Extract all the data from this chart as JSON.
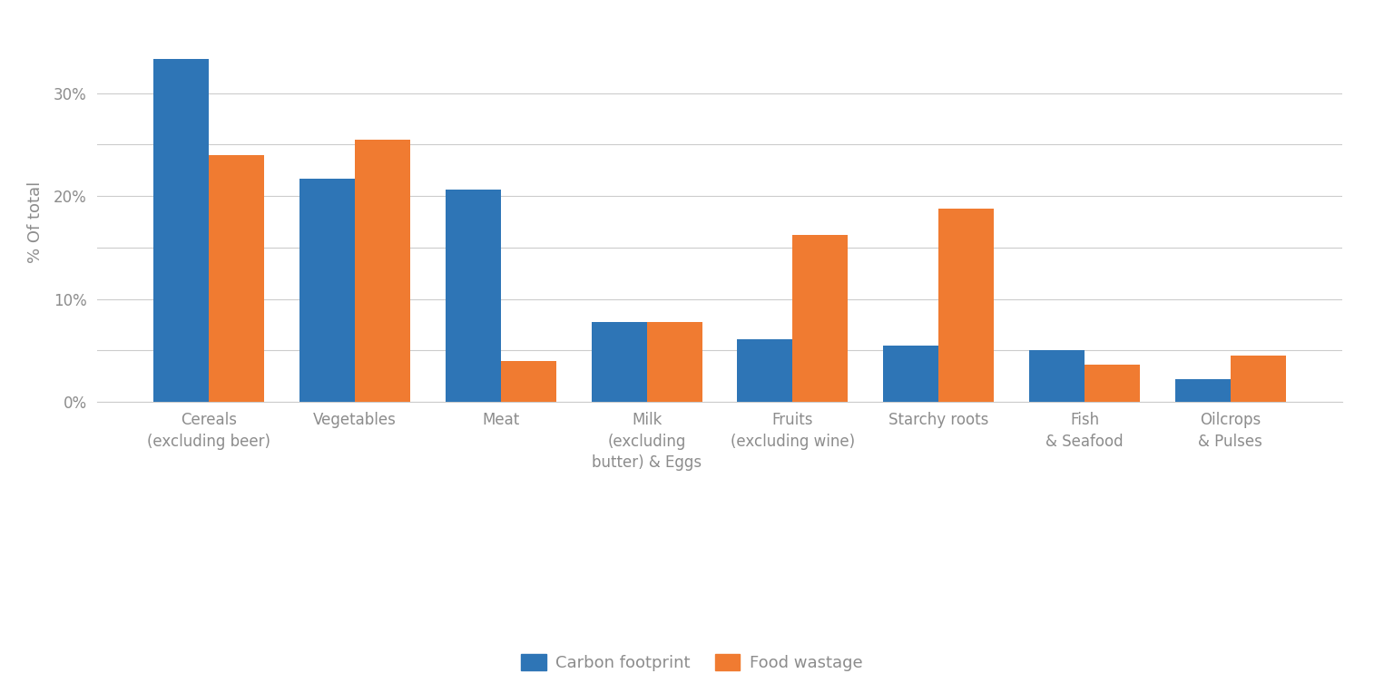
{
  "categories": [
    "Cereals\n(excluding beer)",
    "Vegetables",
    "Meat",
    "Milk\n(excluding\nbutter) & Eggs",
    "Fruits\n(excluding wine)",
    "Starchy roots",
    "Fish\n& Seafood",
    "Oilcrops\n& Pulses"
  ],
  "carbon_footprint": [
    33.3,
    21.7,
    20.6,
    7.8,
    6.1,
    5.5,
    5.0,
    2.2
  ],
  "food_wastage": [
    24.0,
    25.5,
    4.0,
    7.8,
    16.2,
    18.8,
    3.6,
    4.5
  ],
  "bar_color_blue": "#2e75b6",
  "bar_color_orange": "#f07b31",
  "ylabel": "% Of total",
  "ylim": [
    0,
    35
  ],
  "yticks": [
    0,
    10,
    20,
    30
  ],
  "ytick_labels": [
    "0%",
    "10%",
    "20%",
    "30%"
  ],
  "grid_color": "#cccccc",
  "background_color": "#ffffff",
  "legend_label_blue": "Carbon footprint",
  "legend_label_orange": "Food wastage",
  "bar_width": 0.38,
  "font_color": "#8c8c8c",
  "ylabel_fontsize": 13,
  "tick_fontsize": 12,
  "legend_fontsize": 13,
  "extra_gridlines": [
    5,
    15,
    25
  ]
}
